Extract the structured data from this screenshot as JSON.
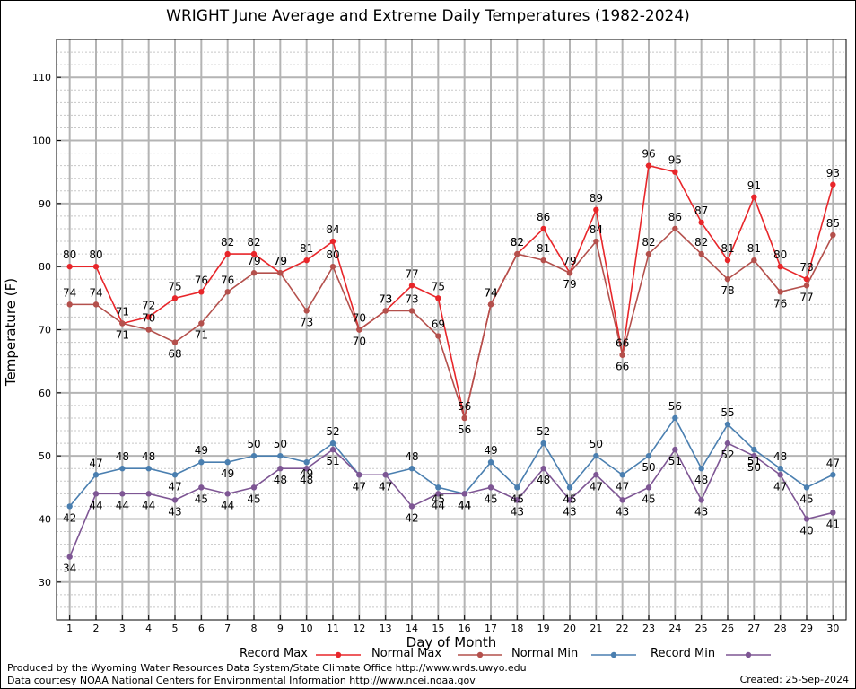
{
  "chart_data": {
    "type": "line",
    "title": "WRIGHT June Average and Extreme Daily Temperatures (1982-2024)",
    "xlabel": "Day of Month",
    "ylabel": "Temperature (F)",
    "x": [
      1,
      2,
      3,
      4,
      5,
      6,
      7,
      8,
      9,
      10,
      11,
      12,
      13,
      14,
      15,
      16,
      17,
      18,
      19,
      20,
      21,
      22,
      23,
      24,
      25,
      26,
      27,
      28,
      29,
      30
    ],
    "xlim": [
      0.5,
      30.5
    ],
    "ylim": [
      24,
      116
    ],
    "yticks": [
      30,
      40,
      50,
      60,
      70,
      80,
      90,
      100,
      110
    ],
    "grid": true,
    "legend_position": "bottom",
    "series": [
      {
        "name": "Record Max",
        "color": "#e8262a",
        "values": [
          80,
          80,
          71,
          72,
          75,
          76,
          82,
          82,
          79,
          81,
          84,
          70,
          73,
          77,
          75,
          56,
          74,
          82,
          86,
          79,
          89,
          66,
          96,
          95,
          87,
          81,
          91,
          80,
          78,
          93
        ],
        "labels": "above"
      },
      {
        "name": "Normal Max",
        "color": "#b4504c",
        "values": [
          74,
          74,
          71,
          70,
          68,
          71,
          76,
          79,
          79,
          73,
          80,
          70,
          73,
          73,
          69,
          56,
          74,
          82,
          81,
          79,
          84,
          66,
          82,
          86,
          82,
          78,
          81,
          76,
          77,
          85
        ],
        "labels": "mixed"
      },
      {
        "name": "Normal Min",
        "color": "#4a7fb0",
        "values": [
          42,
          47,
          48,
          48,
          47,
          49,
          49,
          50,
          50,
          49,
          52,
          47,
          47,
          48,
          45,
          44,
          49,
          45,
          52,
          45,
          50,
          47,
          50,
          56,
          48,
          55,
          51,
          48,
          45,
          47
        ],
        "labels": "mixed"
      },
      {
        "name": "Record Min",
        "color": "#7e5694",
        "values": [
          34,
          44,
          44,
          44,
          43,
          45,
          44,
          45,
          48,
          48,
          51,
          47,
          47,
          42,
          44,
          44,
          45,
          43,
          48,
          43,
          47,
          43,
          45,
          51,
          43,
          52,
          50,
          47,
          40,
          41
        ],
        "labels": "below"
      }
    ]
  },
  "legend": {
    "record_max": "Record Max",
    "normal_max": "Normal Max",
    "normal_min": "Normal Min",
    "record_min": "Record Min"
  },
  "footer": {
    "line1": "Produced by the Wyoming Water Resources Data System/State Climate Office http://www.wrds.uwyo.edu",
    "line2": "Data courtesy NOAA National Centers for Environmental Information http://www.ncei.noaa.gov",
    "created": "Created:  25-Sep-2024"
  }
}
